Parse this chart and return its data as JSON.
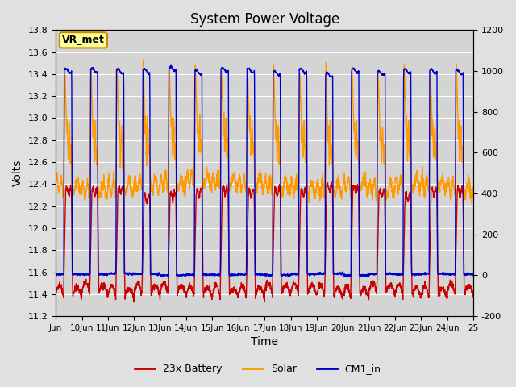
{
  "title": "System Power Voltage",
  "xlabel": "Time",
  "ylabel_left": "Volts",
  "ylim_left": [
    11.2,
    13.8
  ],
  "ylim_right": [
    -200,
    1200
  ],
  "yticks_left": [
    11.2,
    11.4,
    11.6,
    11.8,
    12.0,
    12.2,
    12.4,
    12.6,
    12.8,
    13.0,
    13.2,
    13.4,
    13.6,
    13.8
  ],
  "yticks_right": [
    -200,
    0,
    200,
    400,
    600,
    800,
    1000,
    1200
  ],
  "xtick_labels": [
    "Jun",
    "10Jun",
    "11Jun",
    "12Jun",
    "13Jun",
    "14Jun",
    "15Jun",
    "16Jun",
    "17Jun",
    "18Jun",
    "19Jun",
    "20Jun",
    "21Jun",
    "22Jun",
    "23Jun",
    "24Jun",
    "25"
  ],
  "num_days": 16,
  "background_color": "#e0e0e0",
  "plot_bg_color": "#d4d4d4",
  "grid_color": "#ffffff",
  "annotation_text": "VR_met",
  "annotation_bg": "#ffff99",
  "annotation_border": "#cc8800",
  "colors": {
    "battery": "#cc0000",
    "solar": "#ff9900",
    "cm1": "#0000cc"
  },
  "legend_labels": [
    "23x Battery",
    "Solar",
    "CM1_in"
  ],
  "linewidth": 1.0
}
